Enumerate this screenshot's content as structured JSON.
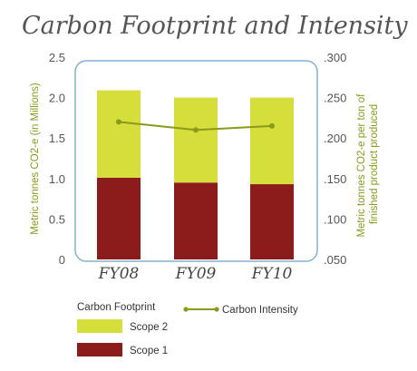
{
  "chart_data": {
    "type": "bar",
    "title": "Carbon Footprint and Intensity",
    "categories": [
      "FY08",
      "FY09",
      "FY10"
    ],
    "series": [
      {
        "name": "Scope 1",
        "kind": "bar",
        "axis": "left",
        "values": [
          1.01,
          0.95,
          0.93
        ],
        "color": "#8c1b1b"
      },
      {
        "name": "Scope 2",
        "kind": "bar",
        "axis": "left",
        "values": [
          1.08,
          1.05,
          1.07
        ],
        "color": "#d6de3c"
      },
      {
        "name": "Carbon Intensity",
        "kind": "line",
        "axis": "right",
        "values": [
          0.22,
          0.21,
          0.215
        ],
        "color": "#8a9a1a"
      }
    ],
    "ylabel": "Metric tonnes CO2-e (in Millions)",
    "ylim": [
      0,
      2.5
    ],
    "yticks": [
      "0",
      "0.5",
      "1.0",
      "1.5",
      "2.0",
      "2.5"
    ],
    "y2label": "Metric tonnes CO2-e per ton of finished product produced",
    "y2label_lines": [
      "Metric tonnes CO2-e per ton of",
      "finished product produced"
    ],
    "y2lim": [
      0.05,
      0.3
    ],
    "y2ticks": [
      ".050",
      ".100",
      ".150",
      ".200",
      ".250",
      ".300"
    ],
    "legend": {
      "heading": "Carbon Footprint",
      "placement": "bottom",
      "items": [
        "Scope 2",
        "Scope 1"
      ],
      "line_item": "Carbon Intensity"
    },
    "colors": {
      "frame": "#7fb3d5",
      "axis_label": "#8a9a1a"
    }
  }
}
